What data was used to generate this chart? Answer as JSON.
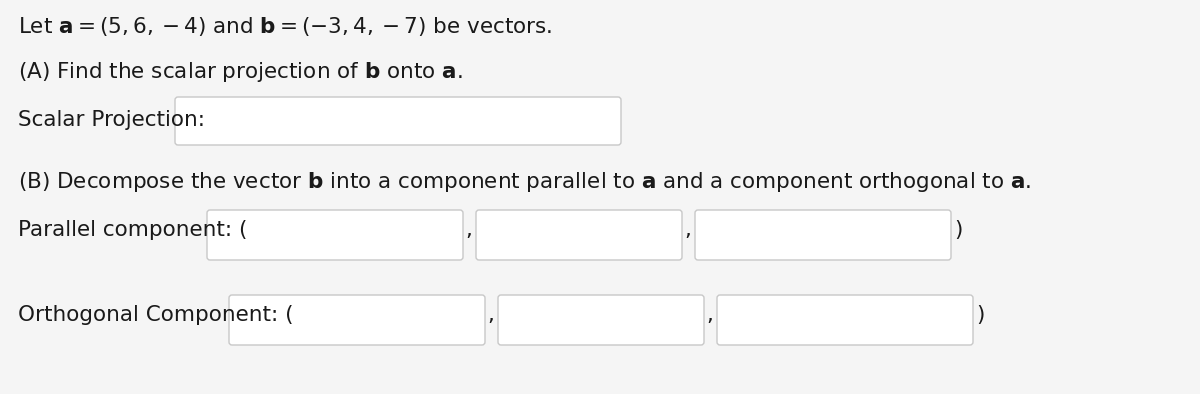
{
  "bg_color": "#f5f5f5",
  "fig_bg_color": "#f5f5f5",
  "box_color": "#ffffff",
  "box_edge_color": "#c8c8c8",
  "text_color": "#1a1a1a",
  "font_size": 15.5,
  "font_family": "DejaVu Sans",
  "line1": "Let $\\mathbf{a} = (5, 6, -4)$ and $\\mathbf{b} = (-3, 4, -7)$ be vectors.",
  "line_a": "(A) Find the scalar projection of $\\mathbf{b}$ onto $\\mathbf{a}$.",
  "scalar_label": "Scalar Projection:",
  "line_b": "(B) Decompose the vector $\\mathbf{b}$ into a component parallel to $\\mathbf{a}$ and a component orthogonal to $\\mathbf{a}$.",
  "parallel_label": "Parallel component: (",
  "orthogonal_label": "Orthogonal Component: (",
  "close_paren": ")",
  "comma": ","
}
